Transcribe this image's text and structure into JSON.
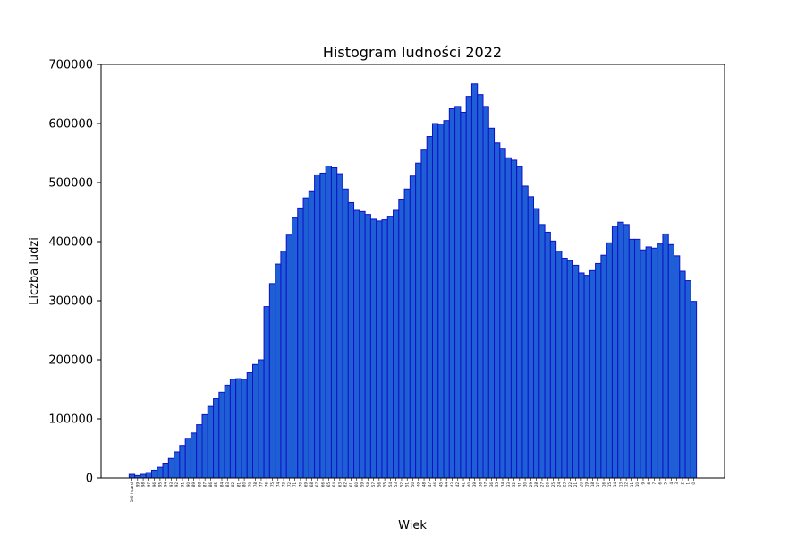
{
  "chart_data": {
    "type": "bar",
    "title": "Histogram ludności 2022",
    "xlabel": "Wiek",
    "ylabel": "Liczba ludzi",
    "ylim": [
      0,
      700000
    ],
    "yticks": [
      "0",
      "100000",
      "200000",
      "300000",
      "400000",
      "500000",
      "600000",
      "700000"
    ],
    "grid": false,
    "bar_color": "#1f5fd6",
    "edge_color": "#1010c8",
    "categories": [
      "100 i starsi",
      "99",
      "98",
      "97",
      "96",
      "95",
      "94",
      "93",
      "92",
      "91",
      "90",
      "89",
      "88",
      "87",
      "86",
      "85",
      "84",
      "83",
      "82",
      "81",
      "80",
      "79",
      "78",
      "77",
      "76",
      "75",
      "74",
      "73",
      "72",
      "71",
      "70",
      "69",
      "68",
      "67",
      "66",
      "65",
      "64",
      "63",
      "62",
      "61",
      "60",
      "59",
      "58",
      "57",
      "56",
      "55",
      "54",
      "53",
      "52",
      "51",
      "50",
      "49",
      "48",
      "47",
      "46",
      "45",
      "44",
      "43",
      "42",
      "41",
      "40",
      "39",
      "38",
      "37",
      "36",
      "35",
      "34",
      "33",
      "32",
      "31",
      "30",
      "29",
      "28",
      "27",
      "26",
      "25",
      "24",
      "23",
      "22",
      "21",
      "20",
      "19",
      "18",
      "17",
      "16",
      "15",
      "14",
      "13",
      "12",
      "11",
      "10",
      "9",
      "8",
      "7",
      "6",
      "5",
      "4",
      "3",
      "2",
      "1",
      "0"
    ],
    "values": [
      6000,
      4000,
      6000,
      9000,
      13000,
      18000,
      25000,
      33000,
      44000,
      55000,
      67000,
      76000,
      90000,
      107000,
      121000,
      134000,
      145000,
      157000,
      167000,
      168000,
      167000,
      178000,
      192000,
      200000,
      290000,
      329000,
      362000,
      384000,
      411000,
      440000,
      457000,
      474000,
      486000,
      513000,
      516000,
      528000,
      525000,
      515000,
      489000,
      466000,
      453000,
      451000,
      446000,
      438000,
      435000,
      437000,
      443000,
      453000,
      472000,
      489000,
      511000,
      533000,
      555000,
      578000,
      600000,
      599000,
      605000,
      625000,
      629000,
      619000,
      646000,
      667000,
      649000,
      629000,
      592000,
      567000,
      558000,
      542000,
      538000,
      527000,
      494000,
      476000,
      456000,
      429000,
      416000,
      401000,
      384000,
      372000,
      368000,
      360000,
      347000,
      343000,
      351000,
      363000,
      377000,
      398000,
      426000,
      433000,
      429000,
      404000,
      404000,
      386000,
      391000,
      389000,
      396000,
      413000,
      395000,
      376000,
      350000,
      334000,
      299000
    ]
  }
}
